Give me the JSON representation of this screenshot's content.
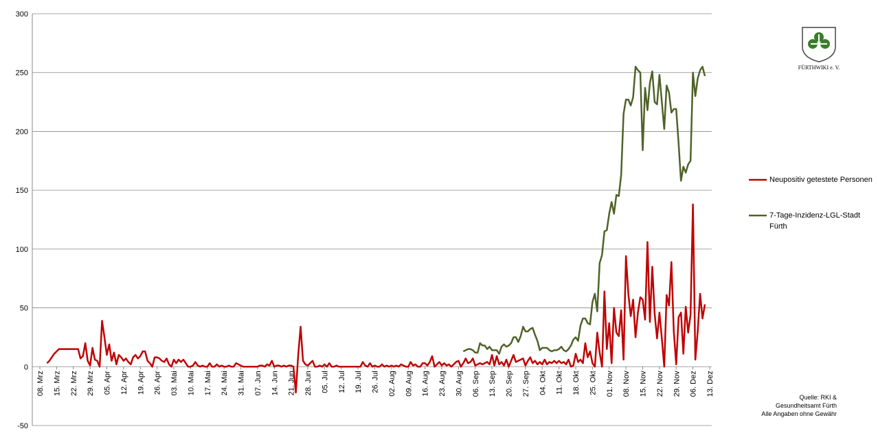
{
  "chart_data": {
    "type": "line",
    "categories": [
      "08. Mrz",
      null,
      null,
      null,
      null,
      null,
      null,
      "15. Mrz",
      null,
      null,
      null,
      null,
      null,
      null,
      "22. Mrz",
      null,
      null,
      null,
      null,
      null,
      null,
      "29. Mrz",
      null,
      null,
      null,
      null,
      null,
      null,
      "05. Apr",
      null,
      null,
      null,
      null,
      null,
      null,
      "12. Apr",
      null,
      null,
      null,
      null,
      null,
      null,
      "19. Apr",
      null,
      null,
      null,
      null,
      null,
      null,
      "26. Apr",
      null,
      null,
      null,
      null,
      null,
      null,
      "03. Mai",
      null,
      null,
      null,
      null,
      null,
      null,
      "10. Mai",
      null,
      null,
      null,
      null,
      null,
      null,
      "17. Mai",
      null,
      null,
      null,
      null,
      null,
      null,
      "24. Mai",
      null,
      null,
      null,
      null,
      null,
      null,
      "31. Mai",
      null,
      null,
      null,
      null,
      null,
      null,
      "07. Jun",
      null,
      null,
      null,
      null,
      null,
      null,
      "14. Jun",
      null,
      null,
      null,
      null,
      null,
      null,
      "21. Jun",
      null,
      null,
      null,
      null,
      null,
      null,
      "28. Jun",
      null,
      null,
      null,
      null,
      null,
      null,
      "05. Jul",
      null,
      null,
      null,
      null,
      null,
      null,
      "12. Jul",
      null,
      null,
      null,
      null,
      null,
      null,
      "19. Jul",
      null,
      null,
      null,
      null,
      null,
      null,
      "26. Jul",
      null,
      null,
      null,
      null,
      null,
      null,
      "02. Aug",
      null,
      null,
      null,
      null,
      null,
      null,
      "09. Aug",
      null,
      null,
      null,
      null,
      null,
      null,
      "16. Aug",
      null,
      null,
      null,
      null,
      null,
      null,
      "23. Aug",
      null,
      null,
      null,
      null,
      null,
      null,
      "30. Aug",
      null,
      null,
      null,
      null,
      null,
      null,
      "06. Sep",
      null,
      null,
      null,
      null,
      null,
      null,
      "13. Sep",
      null,
      null,
      null,
      null,
      null,
      null,
      "20. Sep",
      null,
      null,
      null,
      null,
      null,
      null,
      "27. Sep",
      null,
      null,
      null,
      null,
      null,
      null,
      "04. Okt",
      null,
      null,
      null,
      null,
      null,
      null,
      "11. Okt",
      null,
      null,
      null,
      null,
      null,
      null,
      "18. Okt",
      null,
      null,
      null,
      null,
      null,
      null,
      "25. Okt",
      null,
      null,
      null,
      null,
      null,
      null,
      "01. Nov",
      null,
      null,
      null,
      null,
      null,
      null,
      "08. Nov",
      null,
      null,
      null,
      null,
      null,
      null,
      "15. Nov",
      null,
      null,
      null,
      null,
      null,
      null,
      "22. Nov",
      null,
      null,
      null,
      null,
      null,
      null,
      "29. Nov",
      null,
      null,
      null,
      null,
      null,
      null,
      "06. Dez",
      null,
      null,
      null,
      null,
      null,
      null,
      "13. Dez"
    ],
    "series": [
      {
        "name": "Neupositiv getestete Personen",
        "color": "#c00000",
        "values": [
          null,
          null,
          null,
          3,
          5,
          8,
          11,
          13,
          15,
          15,
          15,
          15,
          15,
          15,
          15,
          15,
          15,
          7,
          9,
          20,
          5,
          1,
          16,
          6,
          5,
          0,
          39,
          25,
          10,
          19,
          5,
          12,
          2,
          10,
          8,
          5,
          7,
          4,
          2,
          8,
          10,
          7,
          9,
          13,
          13,
          5,
          3,
          0,
          8,
          8,
          7,
          5,
          4,
          7,
          2,
          0,
          6,
          3,
          6,
          4,
          6,
          3,
          0,
          0,
          1,
          4,
          1,
          0,
          1,
          0,
          0,
          3,
          0,
          0,
          2,
          0,
          1,
          0,
          0,
          1,
          0,
          0,
          3,
          2,
          1,
          0,
          0,
          0,
          0,
          0,
          0,
          0,
          1,
          1,
          0,
          2,
          1,
          5,
          0,
          1,
          1,
          0,
          1,
          0,
          1,
          1,
          0,
          -22,
          10,
          34,
          5,
          2,
          1,
          3,
          5,
          0,
          0,
          1,
          0,
          2,
          0,
          3,
          0,
          0,
          1,
          0,
          0,
          0,
          0,
          0,
          0,
          0,
          0,
          0,
          0,
          4,
          1,
          0,
          3,
          0,
          1,
          0,
          0,
          2,
          0,
          1,
          0,
          1,
          0,
          1,
          0,
          2,
          1,
          0,
          0,
          4,
          1,
          2,
          0,
          0,
          3,
          3,
          1,
          4,
          9,
          0,
          2,
          4,
          1,
          3,
          1,
          2,
          0,
          2,
          4,
          5,
          0,
          3,
          7,
          3,
          4,
          7,
          1,
          2,
          3,
          2,
          3,
          4,
          2,
          10,
          1,
          9,
          2,
          4,
          1,
          6,
          0,
          5,
          10,
          4,
          5,
          6,
          7,
          1,
          5,
          8,
          3,
          5,
          2,
          4,
          2,
          6,
          2,
          4,
          3,
          5,
          3,
          5,
          3,
          4,
          2,
          6,
          0,
          1,
          11,
          4,
          6,
          3,
          20,
          8,
          13,
          3,
          0,
          29,
          12,
          0,
          64,
          15,
          37,
          3,
          50,
          29,
          26,
          48,
          6,
          94,
          62,
          43,
          57,
          25,
          46,
          59,
          57,
          40,
          106,
          38,
          85,
          45,
          24,
          46,
          24,
          0,
          61,
          52,
          89,
          30,
          2,
          42,
          46,
          11,
          51,
          29,
          44,
          138,
          6,
          30,
          62,
          41,
          53,
          null,
          null
        ]
      },
      {
        "name": "7-Tage-Inzidenz-LGL-Stadt Fürth",
        "color": "#4f6228",
        "values": [
          null,
          null,
          null,
          null,
          null,
          null,
          null,
          null,
          null,
          null,
          null,
          null,
          null,
          null,
          null,
          null,
          null,
          null,
          null,
          null,
          null,
          null,
          null,
          null,
          null,
          null,
          null,
          null,
          null,
          null,
          null,
          null,
          null,
          null,
          null,
          null,
          null,
          null,
          null,
          null,
          null,
          null,
          null,
          null,
          null,
          null,
          null,
          null,
          null,
          null,
          null,
          null,
          null,
          null,
          null,
          null,
          null,
          null,
          null,
          null,
          null,
          null,
          null,
          null,
          null,
          null,
          null,
          null,
          null,
          null,
          null,
          null,
          null,
          null,
          null,
          null,
          null,
          null,
          null,
          null,
          null,
          null,
          null,
          null,
          null,
          null,
          null,
          null,
          null,
          null,
          null,
          null,
          null,
          null,
          null,
          null,
          null,
          null,
          null,
          null,
          null,
          null,
          null,
          null,
          null,
          null,
          null,
          null,
          null,
          null,
          null,
          null,
          null,
          null,
          null,
          null,
          null,
          null,
          null,
          null,
          null,
          null,
          null,
          null,
          null,
          null,
          null,
          null,
          null,
          null,
          null,
          null,
          null,
          null,
          null,
          null,
          null,
          null,
          null,
          null,
          null,
          null,
          null,
          null,
          null,
          null,
          null,
          null,
          null,
          null,
          null,
          null,
          null,
          null,
          null,
          null,
          null,
          null,
          null,
          null,
          null,
          null,
          null,
          null,
          null,
          null,
          null,
          null,
          null,
          null,
          null,
          null,
          null,
          null,
          null,
          null,
          null,
          13,
          14,
          15,
          15,
          14,
          12,
          12,
          20,
          18,
          18,
          15,
          17,
          14,
          14,
          14,
          11,
          17,
          19,
          17,
          18,
          20,
          25,
          25,
          21,
          26,
          34,
          30,
          30,
          32,
          33,
          27,
          22,
          14,
          16,
          16,
          16,
          14,
          13,
          14,
          14,
          15,
          17,
          14,
          13,
          15,
          18,
          23,
          25,
          22,
          35,
          41,
          41,
          37,
          36,
          55,
          62,
          47,
          88,
          95,
          115,
          116,
          130,
          140,
          130,
          146,
          145,
          163,
          215,
          227,
          227,
          222,
          229,
          255,
          252,
          250,
          184,
          237,
          218,
          241,
          251,
          225,
          223,
          248,
          225,
          202,
          239,
          233,
          216,
          219,
          219,
          190,
          158,
          170,
          165,
          172,
          175,
          250,
          230,
          245,
          252,
          255,
          247,
          null,
          null
        ]
      }
    ],
    "ylim": [
      -50,
      300
    ],
    "yticks": [
      -50,
      0,
      50,
      100,
      150,
      200,
      250,
      300
    ],
    "grid": true,
    "legend": "right",
    "logo_text": "FÜRTHWIKI e. V.",
    "source": [
      "Quelle: RKI &",
      "Gesundheitsamt Fürth",
      "Alle Angaben ohne Gewähr"
    ]
  }
}
